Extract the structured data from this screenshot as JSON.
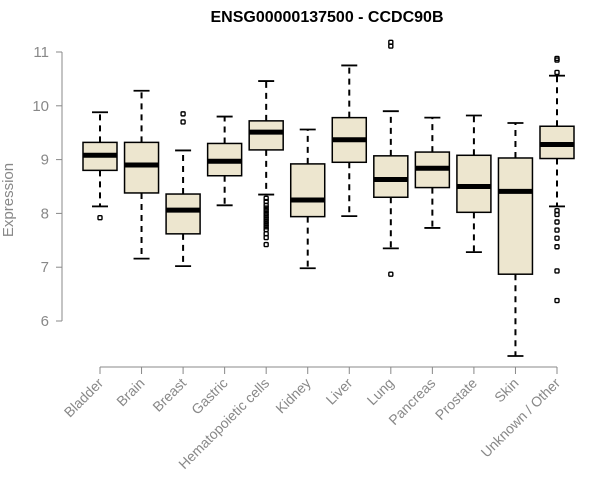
{
  "chart_data": {
    "type": "boxplot",
    "title": "ENSG00000137500 - CCDC90B",
    "ylabel": "Expression",
    "xlabel": "",
    "ylim": [
      5.3,
      11.05
    ],
    "yticks": [
      6,
      7,
      8,
      9,
      10,
      11
    ],
    "box_color": "#ede6cf",
    "categories": [
      "Bladder",
      "Brain",
      "Breast",
      "Gastric",
      "Hematopoietic cells",
      "Kidney",
      "Liver",
      "Lung",
      "Pancreas",
      "Prostate",
      "Skin",
      "Unknown / Other"
    ],
    "boxes": [
      {
        "q1": 8.8,
        "median": 9.08,
        "q3": 9.32,
        "whislo": 8.13,
        "whishi": 9.88,
        "outliers": [
          7.92
        ]
      },
      {
        "q1": 8.38,
        "median": 8.9,
        "q3": 9.32,
        "whislo": 7.16,
        "whishi": 10.28,
        "outliers": []
      },
      {
        "q1": 7.62,
        "median": 8.06,
        "q3": 8.36,
        "whislo": 7.02,
        "whishi": 9.17,
        "outliers": [
          9.7,
          9.85
        ]
      },
      {
        "q1": 8.7,
        "median": 8.97,
        "q3": 9.3,
        "whislo": 8.15,
        "whishi": 9.8,
        "outliers": []
      },
      {
        "q1": 9.18,
        "median": 9.51,
        "q3": 9.72,
        "whislo": 8.35,
        "whishi": 10.46,
        "outliers": [
          8.28,
          8.22,
          8.15,
          8.1,
          8.05,
          8.0,
          7.95,
          7.9,
          7.85,
          7.8,
          7.75,
          7.7,
          7.62,
          7.55,
          7.42
        ]
      },
      {
        "q1": 7.94,
        "median": 8.25,
        "q3": 8.92,
        "whislo": 6.98,
        "whishi": 9.56,
        "outliers": []
      },
      {
        "q1": 8.95,
        "median": 9.37,
        "q3": 9.78,
        "whislo": 7.95,
        "whishi": 10.75,
        "outliers": []
      },
      {
        "q1": 8.3,
        "median": 8.63,
        "q3": 9.07,
        "whislo": 7.35,
        "whishi": 9.9,
        "outliers": [
          6.87,
          11.11,
          11.18
        ]
      },
      {
        "q1": 8.48,
        "median": 8.84,
        "q3": 9.14,
        "whislo": 7.73,
        "whishi": 9.78,
        "outliers": []
      },
      {
        "q1": 8.02,
        "median": 8.5,
        "q3": 9.08,
        "whislo": 7.28,
        "whishi": 9.82,
        "outliers": []
      },
      {
        "q1": 6.87,
        "median": 8.41,
        "q3": 9.03,
        "whislo": 5.35,
        "whishi": 9.68,
        "outliers": []
      },
      {
        "q1": 9.02,
        "median": 9.28,
        "q3": 9.62,
        "whislo": 8.13,
        "whishi": 10.56,
        "outliers": [
          8.05,
          7.98,
          7.84,
          7.69,
          7.54,
          7.38,
          6.93,
          6.38,
          10.62,
          10.85,
          10.88
        ]
      }
    ]
  }
}
